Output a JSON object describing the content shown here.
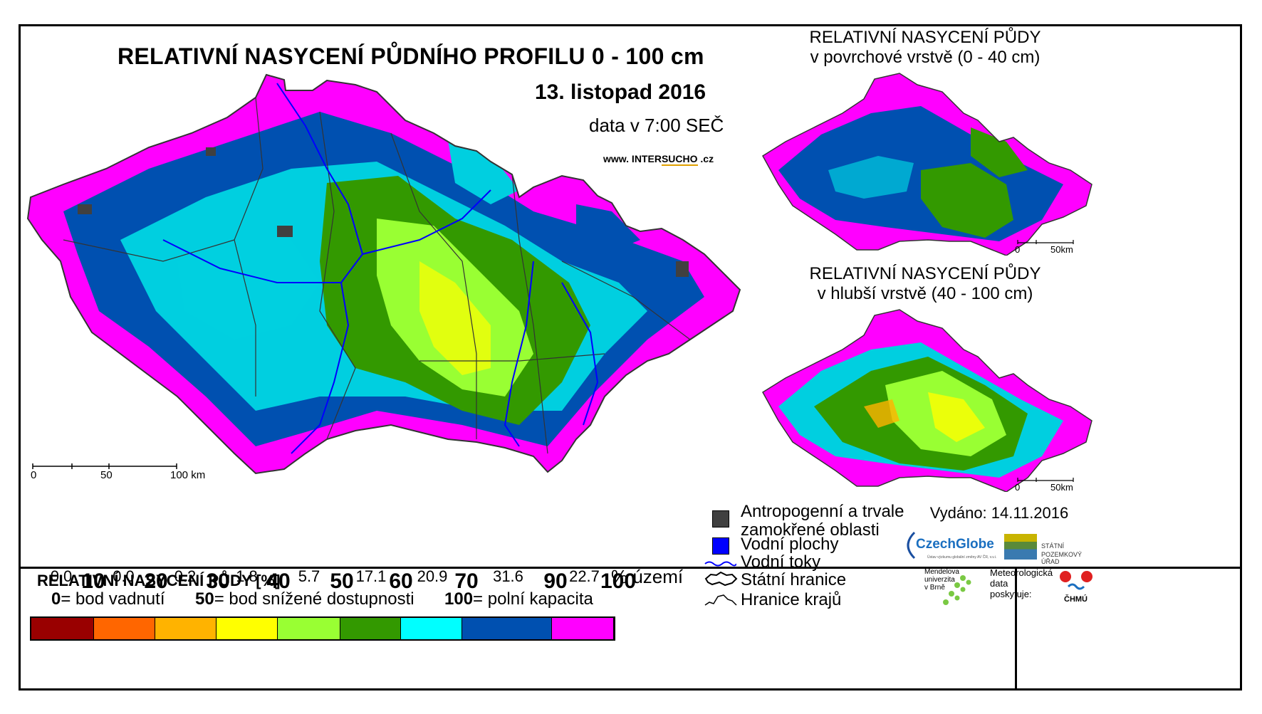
{
  "main_map": {
    "title": "RELATIVNÍ NASYCENÍ PŮDNÍHO PROFILU 0 - 100 cm",
    "date": "13. listopad 2016",
    "time": "data v 7:00 SEČ",
    "website_prefix": "www. INTER",
    "website_highlight": "SUCHO",
    "website_suffix": " .cz",
    "scale_labels": [
      "0",
      "50",
      "100 km"
    ]
  },
  "inset_top": {
    "title_line1": "RELATIVNÍ NASYCENÍ PŮDY",
    "title_line2": "v povrchové vrstvě (0 - 40 cm)",
    "scale_labels": [
      "0",
      "50km"
    ]
  },
  "inset_bottom": {
    "title_line1": "RELATIVNÍ NASYCENÍ PŮDY",
    "title_line2": "v hlubší vrstvě (40 - 100 cm)",
    "scale_labels": [
      "0",
      "50km"
    ]
  },
  "legend": {
    "title": "RELATIVNÍ NASYCENÍ PŮDY [%]",
    "thresholds": [
      "10",
      "20",
      "30",
      "40",
      "50",
      "60",
      "70",
      "90",
      "100"
    ],
    "classes": [
      {
        "color": "#990000",
        "pct": "0.0"
      },
      {
        "color": "#ff6600",
        "pct": "0.0"
      },
      {
        "color": "#ffb300",
        "pct": "0.2"
      },
      {
        "color": "#ffff00",
        "pct": "1.8"
      },
      {
        "color": "#99ff33",
        "pct": "5.7"
      },
      {
        "color": "#339900",
        "pct": "17.1"
      },
      {
        "color": "#00ffff",
        "pct": "20.9"
      },
      {
        "color": "#0050b0",
        "pct": "31.6"
      },
      {
        "color": "#ff00ff",
        "pct": "22.7"
      }
    ],
    "unit": "% území",
    "notes": [
      {
        "value": "0",
        "label": "= bod vadnutí"
      },
      {
        "value": "50",
        "label": "= bod snížené dostupnosti"
      },
      {
        "value": "100",
        "label": "= polní kapacita"
      }
    ]
  },
  "symbol_legend": {
    "anthropogenic_line1": "Antropogenní a trvale",
    "anthropogenic_line2": "zamokřené oblasti",
    "water_bodies": "Vodní plochy",
    "rivers": "Vodní toky",
    "state_border": "Státní hranice",
    "regions": "Hranice krajů",
    "anthropogenic_color": "#404040",
    "water_color": "#0000ff"
  },
  "issued": "Vydáno: 14.11.2016",
  "logos": {
    "czechglobe": "CzechGlobe",
    "czechglobe_sub": "Ústav výzkumu globální změny AV ČR, v.v.i.",
    "spu_line1": "STÁTNÍ",
    "spu_line2": "POZEMKOVÝ ÚŘAD",
    "mendel_line1": "Mendelova",
    "mendel_line2": "univerzita",
    "mendel_line3": "v Brně",
    "meteo_line1": "Meteorologická",
    "meteo_line2": "data",
    "meteo_line3": "poskytuje:",
    "chmu": "ČHMÚ"
  }
}
